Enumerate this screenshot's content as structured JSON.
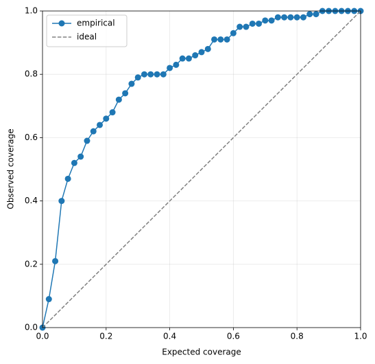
{
  "chart_data": {
    "type": "line",
    "x_label": "Expected coverage",
    "y_label": "Observed coverage",
    "xlim": [
      0,
      1
    ],
    "ylim": [
      0,
      1
    ],
    "xticks": [
      {
        "value": 0,
        "label": "0.0"
      },
      {
        "value": 0.2,
        "label": "0.2"
      },
      {
        "value": 0.4,
        "label": "0.4"
      },
      {
        "value": 0.6,
        "label": "0.6"
      },
      {
        "value": 0.8,
        "label": "0.8"
      },
      {
        "value": 1,
        "label": "1.0"
      }
    ],
    "yticks": [
      {
        "value": 0,
        "label": "0.0"
      },
      {
        "value": 0.2,
        "label": "0.2"
      },
      {
        "value": 0.4,
        "label": "0.4"
      },
      {
        "value": 0.6,
        "label": "0.6"
      },
      {
        "value": 0.8,
        "label": "0.8"
      },
      {
        "value": 1,
        "label": "1.0"
      }
    ],
    "grid": true,
    "legend": "upper left",
    "series": [
      {
        "name": "empirical",
        "color": "#1f77b4",
        "marker": "circle",
        "dash": false,
        "x": [
          0,
          0.02,
          0.04,
          0.06,
          0.08,
          0.1,
          0.12,
          0.14,
          0.16,
          0.18,
          0.2,
          0.22,
          0.24,
          0.26,
          0.28,
          0.3,
          0.32,
          0.34,
          0.36,
          0.38,
          0.4,
          0.42,
          0.44,
          0.46,
          0.48,
          0.5,
          0.52,
          0.54,
          0.56,
          0.58,
          0.6,
          0.62,
          0.64,
          0.66,
          0.68,
          0.7,
          0.72,
          0.74,
          0.76,
          0.78,
          0.8,
          0.82,
          0.84,
          0.86,
          0.88,
          0.9,
          0.92,
          0.94,
          0.96,
          0.98,
          1
        ],
        "values": [
          0,
          0.09,
          0.21,
          0.4,
          0.47,
          0.52,
          0.54,
          0.59,
          0.62,
          0.64,
          0.66,
          0.68,
          0.72,
          0.74,
          0.77,
          0.79,
          0.8,
          0.8,
          0.8,
          0.8,
          0.82,
          0.83,
          0.85,
          0.85,
          0.86,
          0.87,
          0.88,
          0.91,
          0.91,
          0.91,
          0.93,
          0.95,
          0.95,
          0.96,
          0.96,
          0.97,
          0.97,
          0.98,
          0.98,
          0.98,
          0.98,
          0.98,
          0.99,
          0.99,
          1,
          1,
          1,
          1,
          1,
          1,
          1
        ]
      },
      {
        "name": "ideal",
        "color": "#808080",
        "marker": null,
        "dash": true,
        "x": [
          0,
          1
        ],
        "values": [
          0,
          1
        ]
      }
    ]
  }
}
